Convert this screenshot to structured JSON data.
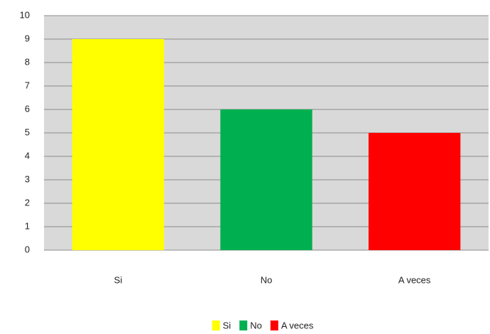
{
  "chart_data": {
    "type": "bar",
    "categories": [
      "Si",
      "No",
      "A veces"
    ],
    "values": [
      9,
      6,
      5
    ],
    "colors": [
      "#ffff00",
      "#00b050",
      "#ff0000"
    ],
    "ylim": [
      0,
      10
    ],
    "yticks": [
      0,
      1,
      2,
      3,
      4,
      5,
      6,
      7,
      8,
      9,
      10
    ],
    "grid": true,
    "legend": "bottom"
  }
}
